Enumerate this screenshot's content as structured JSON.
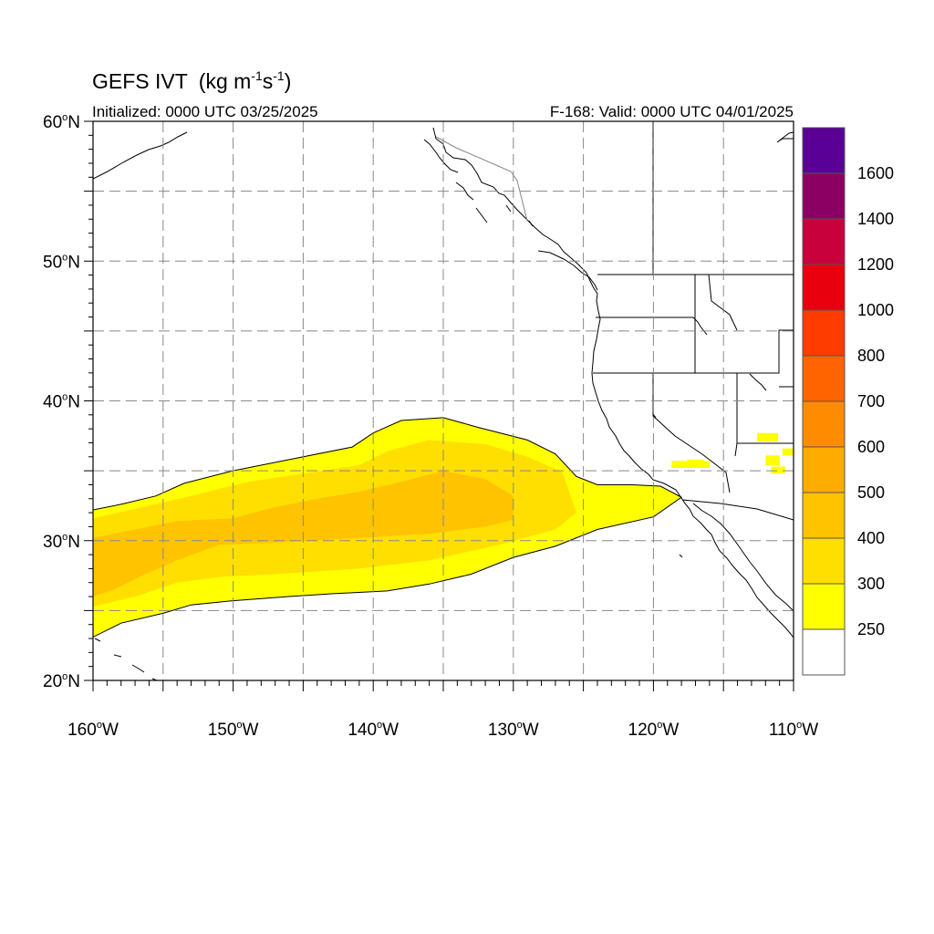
{
  "title": {
    "model": "GEFS IVT",
    "units_open": "(kg m",
    "units_exp1": "-1",
    "units_mid": "s",
    "units_exp2": "-1",
    "units_close": ")"
  },
  "subtitle": {
    "initialized": "Initialized: 0000 UTC 03/25/2025",
    "valid": "F-168: Valid: 0000 UTC 04/01/2025"
  },
  "map": {
    "lon_range": [
      -160,
      -110
    ],
    "lat_range": [
      20,
      60
    ],
    "lat_ticks": [
      {
        "value": 60,
        "num": "60",
        "hemi": "N"
      },
      {
        "value": 50,
        "num": "50",
        "hemi": "N"
      },
      {
        "value": 40,
        "num": "40",
        "hemi": "N"
      },
      {
        "value": 30,
        "num": "30",
        "hemi": "N"
      },
      {
        "value": 20,
        "num": "20",
        "hemi": "N"
      }
    ],
    "lon_ticks": [
      {
        "value": -160,
        "num": "160",
        "hemi": "W"
      },
      {
        "value": -150,
        "num": "150",
        "hemi": "W"
      },
      {
        "value": -140,
        "num": "140",
        "hemi": "W"
      },
      {
        "value": -130,
        "num": "130",
        "hemi": "W"
      },
      {
        "value": -120,
        "num": "120",
        "hemi": "W"
      },
      {
        "value": -110,
        "num": "110",
        "hemi": "W"
      }
    ],
    "grid": "dashed, every 5 degrees"
  },
  "colorbar": {
    "levels": [
      "250",
      "300",
      "400",
      "500",
      "600",
      "700",
      "800",
      "1000",
      "1200",
      "1400",
      "1600"
    ],
    "colors": [
      "#ffffff",
      "#ffff00",
      "#ffdf00",
      "#ffc300",
      "#ffac00",
      "#ff8c00",
      "#ff6400",
      "#ff3c00",
      "#e8000e",
      "#c8003c",
      "#8c0064",
      "#5a0096"
    ]
  },
  "chart_data": {
    "type": "heatmap",
    "variable": "IVT",
    "units": "kg m-1 s-1",
    "xlim": [
      -160,
      -110
    ],
    "ylim": [
      20,
      60
    ],
    "features": [
      {
        "name": "atmospheric river",
        "min_level": 250,
        "max_level": 400,
        "outline_250": [
          [
            -160,
            32.2
          ],
          [
            -158,
            32.6
          ],
          [
            -155.5,
            33.2
          ],
          [
            -153.5,
            34.1
          ],
          [
            -150,
            35.0
          ],
          [
            -146,
            35.8
          ],
          [
            -141.5,
            36.7
          ],
          [
            -140,
            37.7
          ],
          [
            -138,
            38.6
          ],
          [
            -135,
            38.8
          ],
          [
            -132.5,
            38.1
          ],
          [
            -129,
            37.2
          ],
          [
            -127,
            36.2
          ],
          [
            -125.5,
            34.6
          ],
          [
            -124,
            34.0
          ],
          [
            -121.5,
            34.0
          ],
          [
            -119.5,
            33.9
          ],
          [
            -118,
            33.1
          ],
          [
            -120,
            31.7
          ],
          [
            -124,
            30.8
          ],
          [
            -127,
            29.6
          ],
          [
            -130,
            28.8
          ],
          [
            -133,
            27.6
          ],
          [
            -136,
            26.9
          ],
          [
            -139,
            26.4
          ],
          [
            -143,
            26.2
          ],
          [
            -146,
            26.0
          ],
          [
            -150,
            25.7
          ],
          [
            -153,
            25.4
          ],
          [
            -155,
            24.8
          ],
          [
            -158,
            24.1
          ],
          [
            -160,
            23.1
          ]
        ],
        "outline_300": [
          [
            -160,
            31.6
          ],
          [
            -156,
            32.5
          ],
          [
            -153,
            33.2
          ],
          [
            -149,
            34.2
          ],
          [
            -145,
            34.8
          ],
          [
            -141,
            35.4
          ],
          [
            -139,
            36.4
          ],
          [
            -136,
            37.2
          ],
          [
            -132,
            36.9
          ],
          [
            -129,
            36.0
          ],
          [
            -126.5,
            34.9
          ],
          [
            -125.5,
            32.0
          ],
          [
            -127,
            30.8
          ],
          [
            -131,
            29.7
          ],
          [
            -136,
            28.6
          ],
          [
            -141,
            28.0
          ],
          [
            -147,
            27.6
          ],
          [
            -151,
            27.4
          ],
          [
            -154,
            27.0
          ],
          [
            -157,
            26.0
          ],
          [
            -160,
            25.3
          ]
        ],
        "outline_400": [
          [
            -160,
            30.2
          ],
          [
            -157,
            30.8
          ],
          [
            -154,
            31.4
          ],
          [
            -150,
            31.6
          ],
          [
            -147,
            32.4
          ],
          [
            -144,
            33.0
          ],
          [
            -141,
            33.5
          ],
          [
            -138,
            34.2
          ],
          [
            -135,
            35.0
          ],
          [
            -132,
            34.4
          ],
          [
            -130,
            33.2
          ],
          [
            -130,
            31.5
          ],
          [
            -132,
            31.0
          ],
          [
            -136,
            30.5
          ],
          [
            -141,
            30.2
          ],
          [
            -146,
            29.9
          ],
          [
            -151,
            29.7
          ],
          [
            -154,
            28.6
          ],
          [
            -156.5,
            27.5
          ],
          [
            -158.5,
            26.5
          ],
          [
            -160,
            26.0
          ]
        ]
      },
      {
        "name": "inland patches",
        "min_level": 250,
        "patches": [
          [
            -118.7,
            35.2,
            2.7,
            0.5
          ],
          [
            -117.6,
            35.5,
            1.2,
            0.3
          ],
          [
            -112.6,
            37.1,
            1.5,
            0.6
          ],
          [
            -112.0,
            35.4,
            1.0,
            0.7
          ],
          [
            -111.6,
            34.8,
            1.0,
            0.5
          ],
          [
            -110.8,
            36.1,
            0.8,
            0.5
          ]
        ]
      }
    ]
  }
}
